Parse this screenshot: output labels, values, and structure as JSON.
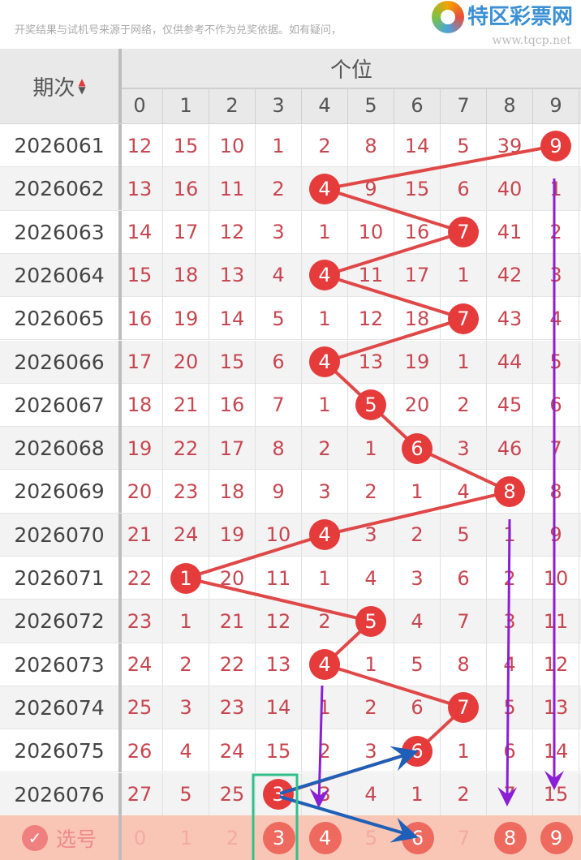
{
  "banner": {
    "disclaimer": "开奖结果与试机号来源于网络，仅供参考不作为兑奖依据。如有疑问，",
    "logo_text": "特区彩票网",
    "logo_url": "www.tqcp.net"
  },
  "header": {
    "period_label": "期次",
    "sort_up": "▲",
    "sort_down": "▼",
    "position_label": "个位",
    "digits": [
      "0",
      "1",
      "2",
      "3",
      "4",
      "5",
      "6",
      "7",
      "8",
      "9"
    ]
  },
  "colors": {
    "ball": "#e63b3b",
    "line": "#e04848",
    "miss_text": "#c8464f",
    "footer_bg": "#f9c6b5",
    "annotation_purple": "#8a1fd6",
    "annotation_blue": "#1f5fb8",
    "annotation_green": "#2fc08a"
  },
  "rows": [
    {
      "period": "2026061",
      "win": 9,
      "cells": [
        "12",
        "15",
        "10",
        "1",
        "2",
        "8",
        "14",
        "5",
        "39",
        "9"
      ]
    },
    {
      "period": "2026062",
      "win": 4,
      "cells": [
        "13",
        "16",
        "11",
        "2",
        "4",
        "9",
        "15",
        "6",
        "40",
        "1"
      ]
    },
    {
      "period": "2026063",
      "win": 7,
      "cells": [
        "14",
        "17",
        "12",
        "3",
        "1",
        "10",
        "16",
        "7",
        "41",
        "2"
      ]
    },
    {
      "period": "2026064",
      "win": 4,
      "cells": [
        "15",
        "18",
        "13",
        "4",
        "4",
        "11",
        "17",
        "1",
        "42",
        "3"
      ]
    },
    {
      "period": "2026065",
      "win": 7,
      "cells": [
        "16",
        "19",
        "14",
        "5",
        "1",
        "12",
        "18",
        "7",
        "43",
        "4"
      ]
    },
    {
      "period": "2026066",
      "win": 4,
      "cells": [
        "17",
        "20",
        "15",
        "6",
        "4",
        "13",
        "19",
        "1",
        "44",
        "5"
      ]
    },
    {
      "period": "2026067",
      "win": 5,
      "cells": [
        "18",
        "21",
        "16",
        "7",
        "1",
        "5",
        "20",
        "2",
        "45",
        "6"
      ]
    },
    {
      "period": "2026068",
      "win": 6,
      "cells": [
        "19",
        "22",
        "17",
        "8",
        "2",
        "1",
        "6",
        "3",
        "46",
        "7"
      ]
    },
    {
      "period": "2026069",
      "win": 8,
      "cells": [
        "20",
        "23",
        "18",
        "9",
        "3",
        "2",
        "1",
        "4",
        "8",
        "8"
      ]
    },
    {
      "period": "2026070",
      "win": 4,
      "cells": [
        "21",
        "24",
        "19",
        "10",
        "4",
        "3",
        "2",
        "5",
        "1",
        "9"
      ]
    },
    {
      "period": "2026071",
      "win": 1,
      "cells": [
        "22",
        "1",
        "20",
        "11",
        "1",
        "4",
        "3",
        "6",
        "2",
        "10"
      ]
    },
    {
      "period": "2026072",
      "win": 5,
      "cells": [
        "23",
        "1",
        "21",
        "12",
        "2",
        "5",
        "4",
        "7",
        "3",
        "11"
      ]
    },
    {
      "period": "2026073",
      "win": 4,
      "cells": [
        "24",
        "2",
        "22",
        "13",
        "4",
        "1",
        "5",
        "8",
        "4",
        "12"
      ]
    },
    {
      "period": "2026074",
      "win": 7,
      "cells": [
        "25",
        "3",
        "23",
        "14",
        "1",
        "2",
        "6",
        "7",
        "5",
        "13"
      ]
    },
    {
      "period": "2026075",
      "win": 6,
      "cells": [
        "26",
        "4",
        "24",
        "15",
        "2",
        "3",
        "6",
        "1",
        "6",
        "14"
      ]
    },
    {
      "period": "2026076",
      "win": 3,
      "cells": [
        "27",
        "5",
        "25",
        "3",
        "3",
        "4",
        "1",
        "2",
        "7",
        "15"
      ]
    }
  ],
  "footer": {
    "check_icon": "✓",
    "label": "选号",
    "digits": [
      "0",
      "1",
      "2",
      "3",
      "4",
      "5",
      "6",
      "7",
      "8",
      "9"
    ],
    "selected": [
      3,
      4,
      6,
      8,
      9
    ]
  }
}
